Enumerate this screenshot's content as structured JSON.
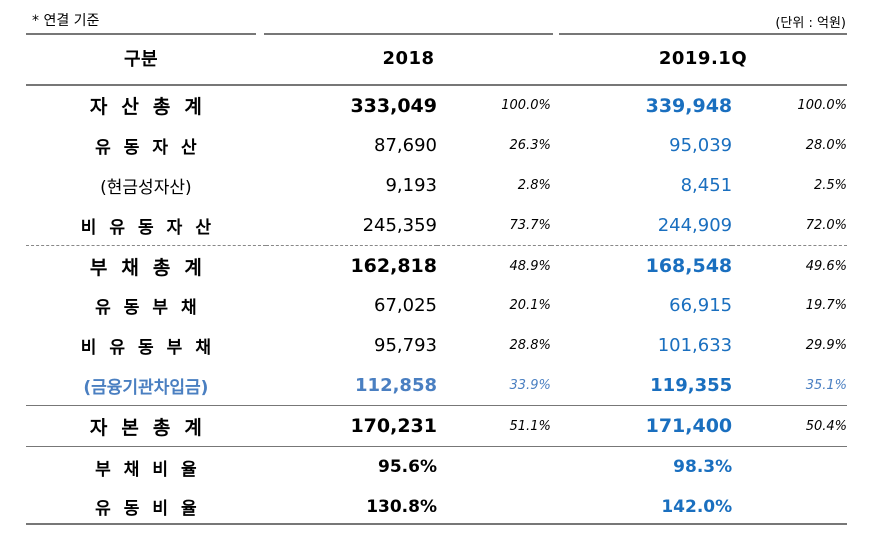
{
  "note": "* 연결 기준",
  "unit": "(단위 : 억원)",
  "header": {
    "label": "구분",
    "col1": "2018",
    "col2": "2019.1Q"
  },
  "rows": [
    {
      "label": "자산총계",
      "v18": "333,049",
      "p18": "100.0%",
      "v19": "339,948",
      "p19": "100.0%"
    },
    {
      "label": "유동자산",
      "v18": "87,690",
      "p18": "26.3%",
      "v19": "95,039",
      "p19": "28.0%"
    },
    {
      "label": "(현금성자산)",
      "v18": "9,193",
      "p18": "2.8%",
      "v19": "8,451",
      "p19": "2.5%"
    },
    {
      "label": "비유동자산",
      "v18": "245,359",
      "p18": "73.7%",
      "v19": "244,909",
      "p19": "72.0%"
    },
    {
      "label": "부채총계",
      "v18": "162,818",
      "p18": "48.9%",
      "v19": "168,548",
      "p19": "49.6%"
    },
    {
      "label": "유동부채",
      "v18": "67,025",
      "p18": "20.1%",
      "v19": "66,915",
      "p19": "19.7%"
    },
    {
      "label": "비유동부채",
      "v18": "95,793",
      "p18": "28.8%",
      "v19": "101,633",
      "p19": "29.9%"
    },
    {
      "label": "(금융기관차입금)",
      "v18": "112,858",
      "p18": "33.9%",
      "v19": "119,355",
      "p19": "35.1%"
    },
    {
      "label": "자본총계",
      "v18": "170,231",
      "p18": "51.1%",
      "v19": "171,400",
      "p19": "50.4%"
    },
    {
      "label": "부채비율",
      "v18": "95.6%",
      "v19": "98.3%"
    },
    {
      "label": "유동비율",
      "v18": "130.8%",
      "v19": "142.0%"
    }
  ]
}
